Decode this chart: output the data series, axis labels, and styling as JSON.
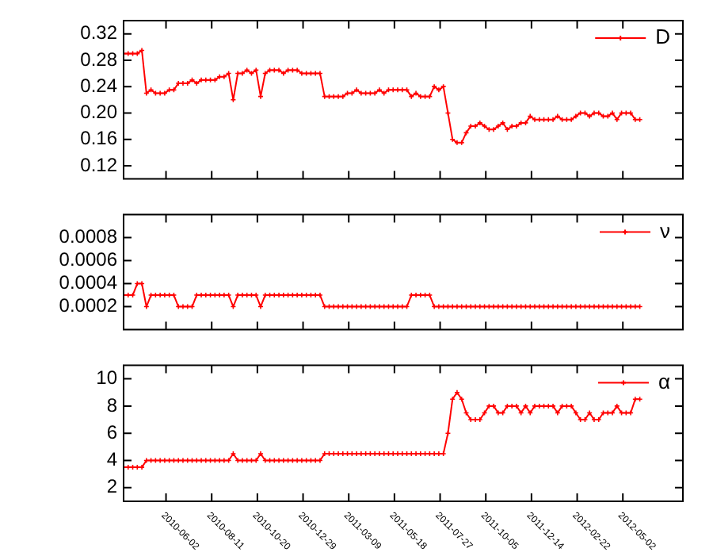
{
  "chart_data": [
    {
      "type": "line",
      "x": [
        "2010-03-29",
        "2010-04-05",
        "2010-04-12",
        "2010-04-19",
        "2010-04-26",
        "2010-05-03",
        "2010-05-10",
        "2010-05-17",
        "2010-05-24",
        "2010-05-31",
        "2010-06-07",
        "2010-06-14",
        "2010-06-21",
        "2010-06-28",
        "2010-07-05",
        "2010-07-12",
        "2010-07-19",
        "2010-07-26",
        "2010-08-02",
        "2010-08-09",
        "2010-08-16",
        "2010-08-23",
        "2010-08-30",
        "2010-09-06",
        "2010-09-13",
        "2010-09-20",
        "2010-09-27",
        "2010-10-04",
        "2010-10-11",
        "2010-10-18",
        "2010-10-25",
        "2010-11-01",
        "2010-11-08",
        "2010-11-15",
        "2010-11-22",
        "2010-11-29",
        "2010-12-06",
        "2010-12-13",
        "2010-12-20",
        "2010-12-27",
        "2011-01-03",
        "2011-01-10",
        "2011-01-17",
        "2011-01-24",
        "2011-01-31",
        "2011-02-07",
        "2011-02-14",
        "2011-02-21",
        "2011-02-28",
        "2011-03-07",
        "2011-03-14",
        "2011-03-21",
        "2011-03-28",
        "2011-04-04",
        "2011-04-11",
        "2011-04-18",
        "2011-04-25",
        "2011-05-02",
        "2011-05-09",
        "2011-05-16",
        "2011-05-23",
        "2011-05-30",
        "2011-06-06",
        "2011-06-13",
        "2011-06-20",
        "2011-06-27",
        "2011-07-04",
        "2011-07-11",
        "2011-07-18",
        "2011-07-25",
        "2011-08-01",
        "2011-08-08",
        "2011-08-15",
        "2011-08-22",
        "2011-08-29",
        "2011-09-05",
        "2011-09-12",
        "2011-09-19",
        "2011-09-26",
        "2011-10-03",
        "2011-10-10",
        "2011-10-17",
        "2011-10-24",
        "2011-10-31",
        "2011-11-07",
        "2011-11-14",
        "2011-11-21",
        "2011-11-28",
        "2011-12-05",
        "2011-12-12",
        "2011-12-19",
        "2011-12-26",
        "2012-01-02",
        "2012-01-09",
        "2012-01-16",
        "2012-01-23",
        "2012-01-30",
        "2012-02-06",
        "2012-02-13",
        "2012-02-20",
        "2012-02-27",
        "2012-03-05",
        "2012-03-12",
        "2012-03-19",
        "2012-03-26",
        "2012-04-02",
        "2012-04-09",
        "2012-04-16",
        "2012-04-23",
        "2012-04-30",
        "2012-05-07",
        "2012-05-14",
        "2012-05-21",
        "2012-05-28"
      ],
      "series": [
        {
          "name": "D",
          "color": "#ff0000",
          "values": [
            0.29,
            0.29,
            0.29,
            0.29,
            0.295,
            0.23,
            0.235,
            0.23,
            0.23,
            0.23,
            0.235,
            0.235,
            0.245,
            0.245,
            0.245,
            0.25,
            0.245,
            0.25,
            0.25,
            0.25,
            0.25,
            0.255,
            0.255,
            0.26,
            0.22,
            0.26,
            0.26,
            0.265,
            0.26,
            0.265,
            0.225,
            0.26,
            0.265,
            0.265,
            0.265,
            0.26,
            0.265,
            0.265,
            0.265,
            0.26,
            0.26,
            0.26,
            0.26,
            0.26,
            0.225,
            0.225,
            0.225,
            0.225,
            0.225,
            0.23,
            0.23,
            0.235,
            0.23,
            0.23,
            0.23,
            0.23,
            0.235,
            0.23,
            0.235,
            0.235,
            0.235,
            0.235,
            0.235,
            0.225,
            0.23,
            0.225,
            0.225,
            0.225,
            0.24,
            0.235,
            0.24,
            0.2,
            0.16,
            0.155,
            0.155,
            0.17,
            0.18,
            0.18,
            0.185,
            0.18,
            0.175,
            0.175,
            0.18,
            0.185,
            0.175,
            0.18,
            0.18,
            0.185,
            0.185,
            0.195,
            0.19,
            0.19,
            0.19,
            0.19,
            0.19,
            0.195,
            0.19,
            0.19,
            0.19,
            0.195,
            0.2,
            0.2,
            0.195,
            0.2,
            0.2,
            0.195,
            0.195,
            0.2,
            0.19,
            0.2,
            0.2,
            0.2,
            0.19,
            0.19
          ]
        }
      ],
      "xlim": [
        "2010-03-29",
        "2012-08-02"
      ],
      "xticks": [
        "2010-06-02",
        "2010-08-11",
        "2010-10-20",
        "2010-12-29",
        "2011-03-09",
        "2011-05-18",
        "2011-07-27",
        "2011-10-05",
        "2011-12-14",
        "2012-02-22",
        "2012-05-02"
      ],
      "ylim": [
        0.1,
        0.34
      ],
      "yticks": [
        0.12,
        0.16,
        {
          "value": 0.2,
          "label": "0.20"
        },
        0.24,
        0.28,
        0.32
      ],
      "tick_labels": "y",
      "legend": "top right",
      "marker": "cross"
    },
    {
      "type": "line",
      "x": [
        "2010-03-29",
        "2010-04-05",
        "2010-04-12",
        "2010-04-19",
        "2010-04-26",
        "2010-05-03",
        "2010-05-10",
        "2010-05-17",
        "2010-05-24",
        "2010-05-31",
        "2010-06-07",
        "2010-06-14",
        "2010-06-21",
        "2010-06-28",
        "2010-07-05",
        "2010-07-12",
        "2010-07-19",
        "2010-07-26",
        "2010-08-02",
        "2010-08-09",
        "2010-08-16",
        "2010-08-23",
        "2010-08-30",
        "2010-09-06",
        "2010-09-13",
        "2010-09-20",
        "2010-09-27",
        "2010-10-04",
        "2010-10-11",
        "2010-10-18",
        "2010-10-25",
        "2010-11-01",
        "2010-11-08",
        "2010-11-15",
        "2010-11-22",
        "2010-11-29",
        "2010-12-06",
        "2010-12-13",
        "2010-12-20",
        "2010-12-27",
        "2011-01-03",
        "2011-01-10",
        "2011-01-17",
        "2011-01-24",
        "2011-01-31",
        "2011-02-07",
        "2011-02-14",
        "2011-02-21",
        "2011-02-28",
        "2011-03-07",
        "2011-03-14",
        "2011-03-21",
        "2011-03-28",
        "2011-04-04",
        "2011-04-11",
        "2011-04-18",
        "2011-04-25",
        "2011-05-02",
        "2011-05-09",
        "2011-05-16",
        "2011-05-23",
        "2011-05-30",
        "2011-06-06",
        "2011-06-13",
        "2011-06-20",
        "2011-06-27",
        "2011-07-04",
        "2011-07-11",
        "2011-07-18",
        "2011-07-25",
        "2011-08-01",
        "2011-08-08",
        "2011-08-15",
        "2011-08-22",
        "2011-08-29",
        "2011-09-05",
        "2011-09-12",
        "2011-09-19",
        "2011-09-26",
        "2011-10-03",
        "2011-10-10",
        "2011-10-17",
        "2011-10-24",
        "2011-10-31",
        "2011-11-07",
        "2011-11-14",
        "2011-11-21",
        "2011-11-28",
        "2011-12-05",
        "2011-12-12",
        "2011-12-19",
        "2011-12-26",
        "2012-01-02",
        "2012-01-09",
        "2012-01-16",
        "2012-01-23",
        "2012-01-30",
        "2012-02-06",
        "2012-02-13",
        "2012-02-20",
        "2012-02-27",
        "2012-03-05",
        "2012-03-12",
        "2012-03-19",
        "2012-03-26",
        "2012-04-02",
        "2012-04-09",
        "2012-04-16",
        "2012-04-23",
        "2012-04-30",
        "2012-05-07",
        "2012-05-14",
        "2012-05-21",
        "2012-05-28"
      ],
      "series": [
        {
          "name": "ν",
          "color": "#ff0000",
          "values": [
            0.0003,
            0.0003,
            0.0003,
            0.0004,
            0.0004,
            0.0002,
            0.0003,
            0.0003,
            0.0003,
            0.0003,
            0.0003,
            0.0003,
            0.0002,
            0.0002,
            0.0002,
            0.0002,
            0.0003,
            0.0003,
            0.0003,
            0.0003,
            0.0003,
            0.0003,
            0.0003,
            0.0003,
            0.0002,
            0.0003,
            0.0003,
            0.0003,
            0.0003,
            0.0003,
            0.0002,
            0.0003,
            0.0003,
            0.0003,
            0.0003,
            0.0003,
            0.0003,
            0.0003,
            0.0003,
            0.0003,
            0.0003,
            0.0003,
            0.0003,
            0.0003,
            0.0002,
            0.0002,
            0.0002,
            0.0002,
            0.0002,
            0.0002,
            0.0002,
            0.0002,
            0.0002,
            0.0002,
            0.0002,
            0.0002,
            0.0002,
            0.0002,
            0.0002,
            0.0002,
            0.0002,
            0.0002,
            0.0002,
            0.0003,
            0.0003,
            0.0003,
            0.0003,
            0.0003,
            0.0002,
            0.0002,
            0.0002,
            0.0002,
            0.0002,
            0.0002,
            0.0002,
            0.0002,
            0.0002,
            0.0002,
            0.0002,
            0.0002,
            0.0002,
            0.0002,
            0.0002,
            0.0002,
            0.0002,
            0.0002,
            0.0002,
            0.0002,
            0.0002,
            0.0002,
            0.0002,
            0.0002,
            0.0002,
            0.0002,
            0.0002,
            0.0002,
            0.0002,
            0.0002,
            0.0002,
            0.0002,
            0.0002,
            0.0002,
            0.0002,
            0.0002,
            0.0002,
            0.0002,
            0.0002,
            0.0002,
            0.0002,
            0.0002,
            0.0002,
            0.0002,
            0.0002,
            0.0002
          ]
        }
      ],
      "xlim": [
        "2010-03-29",
        "2012-08-02"
      ],
      "xticks": [
        "2010-06-02",
        "2010-08-11",
        "2010-10-20",
        "2010-12-29",
        "2011-03-09",
        "2011-05-18",
        "2011-07-27",
        "2011-10-05",
        "2011-12-14",
        "2012-02-22",
        "2012-05-02"
      ],
      "ylim": [
        0,
        0.001
      ],
      "yticks": [
        0.0002,
        0.0004,
        0.0006,
        0.0008
      ],
      "tick_labels": "y",
      "legend": "top right",
      "marker": "cross"
    },
    {
      "type": "line",
      "x": [
        "2010-03-29",
        "2010-04-05",
        "2010-04-12",
        "2010-04-19",
        "2010-04-26",
        "2010-05-03",
        "2010-05-10",
        "2010-05-17",
        "2010-05-24",
        "2010-05-31",
        "2010-06-07",
        "2010-06-14",
        "2010-06-21",
        "2010-06-28",
        "2010-07-05",
        "2010-07-12",
        "2010-07-19",
        "2010-07-26",
        "2010-08-02",
        "2010-08-09",
        "2010-08-16",
        "2010-08-23",
        "2010-08-30",
        "2010-09-06",
        "2010-09-13",
        "2010-09-20",
        "2010-09-27",
        "2010-10-04",
        "2010-10-11",
        "2010-10-18",
        "2010-10-25",
        "2010-11-01",
        "2010-11-08",
        "2010-11-15",
        "2010-11-22",
        "2010-11-29",
        "2010-12-06",
        "2010-12-13",
        "2010-12-20",
        "2010-12-27",
        "2011-01-03",
        "2011-01-10",
        "2011-01-17",
        "2011-01-24",
        "2011-01-31",
        "2011-02-07",
        "2011-02-14",
        "2011-02-21",
        "2011-02-28",
        "2011-03-07",
        "2011-03-14",
        "2011-03-21",
        "2011-03-28",
        "2011-04-04",
        "2011-04-11",
        "2011-04-18",
        "2011-04-25",
        "2011-05-02",
        "2011-05-09",
        "2011-05-16",
        "2011-05-23",
        "2011-05-30",
        "2011-06-06",
        "2011-06-13",
        "2011-06-20",
        "2011-06-27",
        "2011-07-04",
        "2011-07-11",
        "2011-07-18",
        "2011-07-25",
        "2011-08-01",
        "2011-08-08",
        "2011-08-15",
        "2011-08-22",
        "2011-08-29",
        "2011-09-05",
        "2011-09-12",
        "2011-09-19",
        "2011-09-26",
        "2011-10-03",
        "2011-10-10",
        "2011-10-17",
        "2011-10-24",
        "2011-10-31",
        "2011-11-07",
        "2011-11-14",
        "2011-11-21",
        "2011-11-28",
        "2011-12-05",
        "2011-12-12",
        "2011-12-19",
        "2011-12-26",
        "2012-01-02",
        "2012-01-09",
        "2012-01-16",
        "2012-01-23",
        "2012-01-30",
        "2012-02-06",
        "2012-02-13",
        "2012-02-20",
        "2012-02-27",
        "2012-03-05",
        "2012-03-12",
        "2012-03-19",
        "2012-03-26",
        "2012-04-02",
        "2012-04-09",
        "2012-04-16",
        "2012-04-23",
        "2012-04-30",
        "2012-05-07",
        "2012-05-14",
        "2012-05-21",
        "2012-05-28"
      ],
      "series": [
        {
          "name": "α",
          "color": "#ff0000",
          "values": [
            3.5,
            3.5,
            3.5,
            3.5,
            3.5,
            4,
            4,
            4,
            4,
            4,
            4,
            4,
            4,
            4,
            4,
            4,
            4,
            4,
            4,
            4,
            4,
            4,
            4,
            4,
            4.5,
            4,
            4,
            4,
            4,
            4,
            4.5,
            4,
            4,
            4,
            4,
            4,
            4,
            4,
            4,
            4,
            4,
            4,
            4,
            4,
            4.5,
            4.5,
            4.5,
            4.5,
            4.5,
            4.5,
            4.5,
            4.5,
            4.5,
            4.5,
            4.5,
            4.5,
            4.5,
            4.5,
            4.5,
            4.5,
            4.5,
            4.5,
            4.5,
            4.5,
            4.5,
            4.5,
            4.5,
            4.5,
            4.5,
            4.5,
            4.5,
            6,
            8.5,
            9,
            8.5,
            7.5,
            7,
            7,
            7,
            7.5,
            8,
            8,
            7.5,
            7.5,
            8,
            8,
            8,
            7.5,
            8,
            7.5,
            8,
            8,
            8,
            8,
            8,
            7.5,
            8,
            8,
            8,
            7.5,
            7,
            7,
            7.5,
            7,
            7,
            7.5,
            7.5,
            7.5,
            8,
            7.5,
            7.5,
            7.5,
            8.5,
            8.5
          ]
        }
      ],
      "xlim": [
        "2010-03-29",
        "2012-08-02"
      ],
      "xticks": [
        "2010-06-02",
        "2010-08-11",
        "2010-10-20",
        "2010-12-29",
        "2011-03-09",
        "2011-05-18",
        "2011-07-27",
        "2011-10-05",
        "2011-12-14",
        "2012-02-22",
        "2012-05-02"
      ],
      "ylim": [
        1,
        11
      ],
      "yticks": [
        2,
        4,
        6,
        8,
        10
      ],
      "legend": "top right",
      "marker": "cross"
    }
  ]
}
